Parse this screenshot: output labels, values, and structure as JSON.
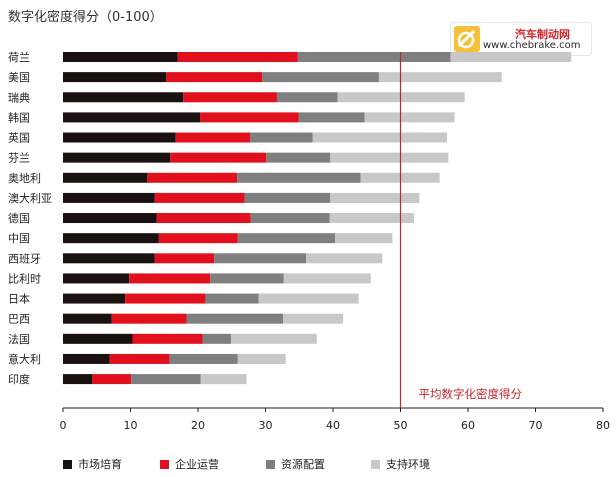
{
  "logo": {
    "cn": "汽车制动网",
    "url": "www.chebrake.com"
  },
  "chart_data": {
    "type": "bar",
    "orientation": "horizontal",
    "stacked": true,
    "title": "数字化密度得分（0-100）",
    "xlim": [
      0,
      80
    ],
    "xticks": [
      0,
      10,
      20,
      30,
      40,
      50,
      60,
      70,
      80
    ],
    "categories": [
      "荷兰",
      "美国",
      "瑞典",
      "韩国",
      "英国",
      "芬兰",
      "奥地利",
      "澳大利亚",
      "德国",
      "中国",
      "西班牙",
      "比利时",
      "日本",
      "巴西",
      "法国",
      "意大利",
      "印度"
    ],
    "series": [
      {
        "name": "市场培育",
        "color": "#1a1111",
        "values": [
          17.0,
          15.3,
          17.8,
          20.3,
          16.7,
          15.9,
          12.5,
          13.6,
          13.9,
          14.2,
          13.6,
          9.8,
          9.2,
          7.2,
          10.3,
          6.9,
          4.3
        ]
      },
      {
        "name": "企业运营",
        "color": "#e2101c",
        "values": [
          17.8,
          14.2,
          13.9,
          14.6,
          11.0,
          14.2,
          13.3,
          13.3,
          13.9,
          11.7,
          8.8,
          12.0,
          11.9,
          11.1,
          10.4,
          8.9,
          5.8
        ]
      },
      {
        "name": "资源配置",
        "color": "#7f7f7f",
        "values": [
          22.6,
          17.3,
          9.0,
          9.8,
          9.3,
          9.5,
          18.3,
          12.7,
          11.7,
          14.4,
          13.6,
          10.9,
          7.9,
          14.3,
          4.2,
          10.1,
          10.3
        ]
      },
      {
        "name": "支持环境",
        "color": "#c8c8c8",
        "values": [
          17.9,
          18.2,
          18.8,
          13.3,
          19.9,
          17.5,
          11.7,
          13.2,
          12.5,
          8.5,
          11.3,
          12.9,
          14.8,
          8.9,
          12.7,
          7.1,
          6.8
        ]
      }
    ],
    "reference_line": {
      "value": 50,
      "label": "平均数字化密度得分",
      "color": "#c0272d"
    },
    "legend_position": "bottom",
    "grid": false
  }
}
